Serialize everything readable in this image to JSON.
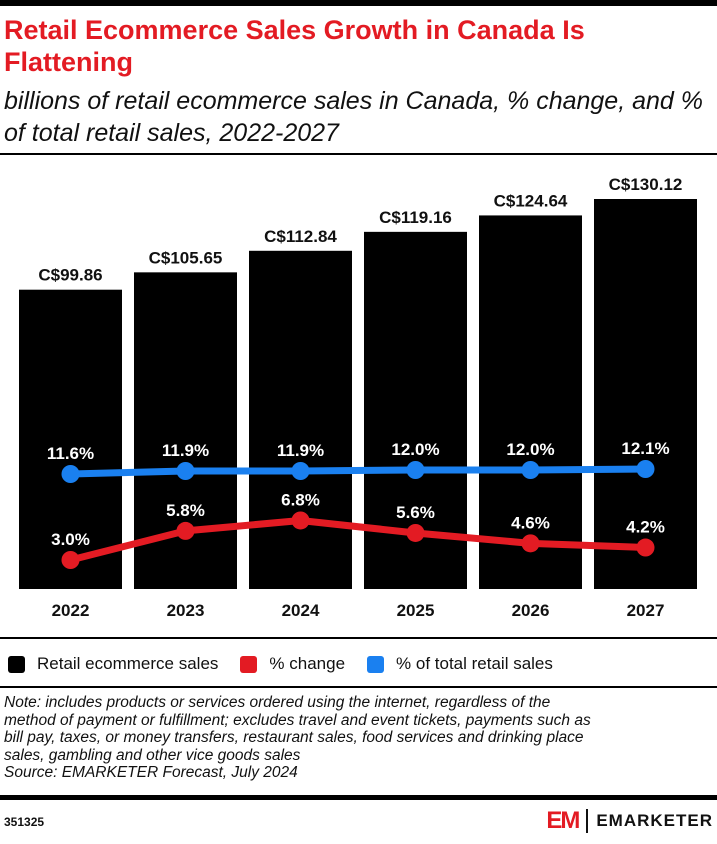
{
  "header": {
    "title": "Retail Ecommerce Sales Growth in Canada Is Flattening",
    "subtitle": "billions of retail ecommerce sales in Canada, % change, and % of total retail sales, 2022-2027"
  },
  "chart_data": {
    "type": "bar",
    "categories": [
      "2022",
      "2023",
      "2024",
      "2025",
      "2026",
      "2027"
    ],
    "series": [
      {
        "name": "Retail ecommerce sales",
        "type": "bar",
        "values": [
          99.86,
          105.65,
          112.84,
          119.16,
          124.64,
          130.12
        ],
        "labels": [
          "C$99.86",
          "C$105.65",
          "C$112.84",
          "C$119.16",
          "C$124.64",
          "C$130.12"
        ],
        "color": "#000000"
      },
      {
        "name": "% change",
        "type": "line",
        "values": [
          3.0,
          5.8,
          6.8,
          5.6,
          4.6,
          4.2
        ],
        "labels": [
          "3.0%",
          "5.8%",
          "6.8%",
          "5.6%",
          "4.6%",
          "4.2%"
        ],
        "color": "#e31b23"
      },
      {
        "name": "% of total retail sales",
        "type": "line",
        "values": [
          11.6,
          11.9,
          11.9,
          12.0,
          12.0,
          12.1
        ],
        "labels": [
          "11.6%",
          "11.9%",
          "11.9%",
          "12.0%",
          "12.0%",
          "12.1%"
        ],
        "color": "#1a80f0"
      }
    ],
    "grid": false,
    "legend": "bottom"
  },
  "note": [
    "Note: includes products or services ordered using the internet, regardless of the",
    "method of payment or fulfillment; excludes travel and event tickets, payments such as",
    "bill pay, taxes, or money transfers, restaurant sales, food services and drinking place",
    "sales, gambling and other vice goods sales",
    "Source: EMARKETER Forecast, July 2024"
  ],
  "footer": {
    "chart_id": "351325",
    "brand_mark": "EM",
    "brand_name": "EMARKETER"
  }
}
